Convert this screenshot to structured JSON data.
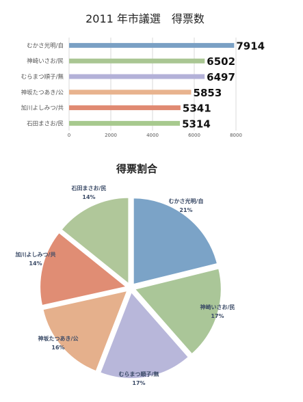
{
  "chart_data": [
    {
      "type": "bar",
      "orientation": "horizontal",
      "title": "2011 年市議選　得票数",
      "categories": [
        "むかさ光明/自",
        "神崎いさお/民",
        "むらまつ順子/無",
        "神坂たつあき/公",
        "加川よしみつ/共",
        "石田まさお/民"
      ],
      "values": [
        7914,
        6502,
        6497,
        5853,
        5341,
        5314
      ],
      "xlim": [
        0,
        8000
      ],
      "xticks": [
        0,
        2000,
        4000,
        6000,
        8000
      ],
      "grid": true,
      "colors": [
        "#7aa0c4",
        "#a9c693",
        "#b3b1d8",
        "#e8b38e",
        "#e08a72",
        "#a7c98e"
      ]
    },
    {
      "type": "pie",
      "title": "得票割合",
      "labels": [
        "むかさ光明/自",
        "神崎いさお/民",
        "むらまつ順子/無",
        "神坂たつあき/公",
        "加川よしみつ/共",
        "石田まさお/民"
      ],
      "percent_labels": [
        "21%",
        "17%",
        "17%",
        "16%",
        "14%",
        "14%"
      ],
      "values": [
        7914,
        6502,
        6497,
        5853,
        5341,
        5314
      ],
      "colors": [
        "#7ba3c7",
        "#aac698",
        "#b8b7da",
        "#e5b08c",
        "#e08d74",
        "#b0c79a"
      ]
    }
  ]
}
